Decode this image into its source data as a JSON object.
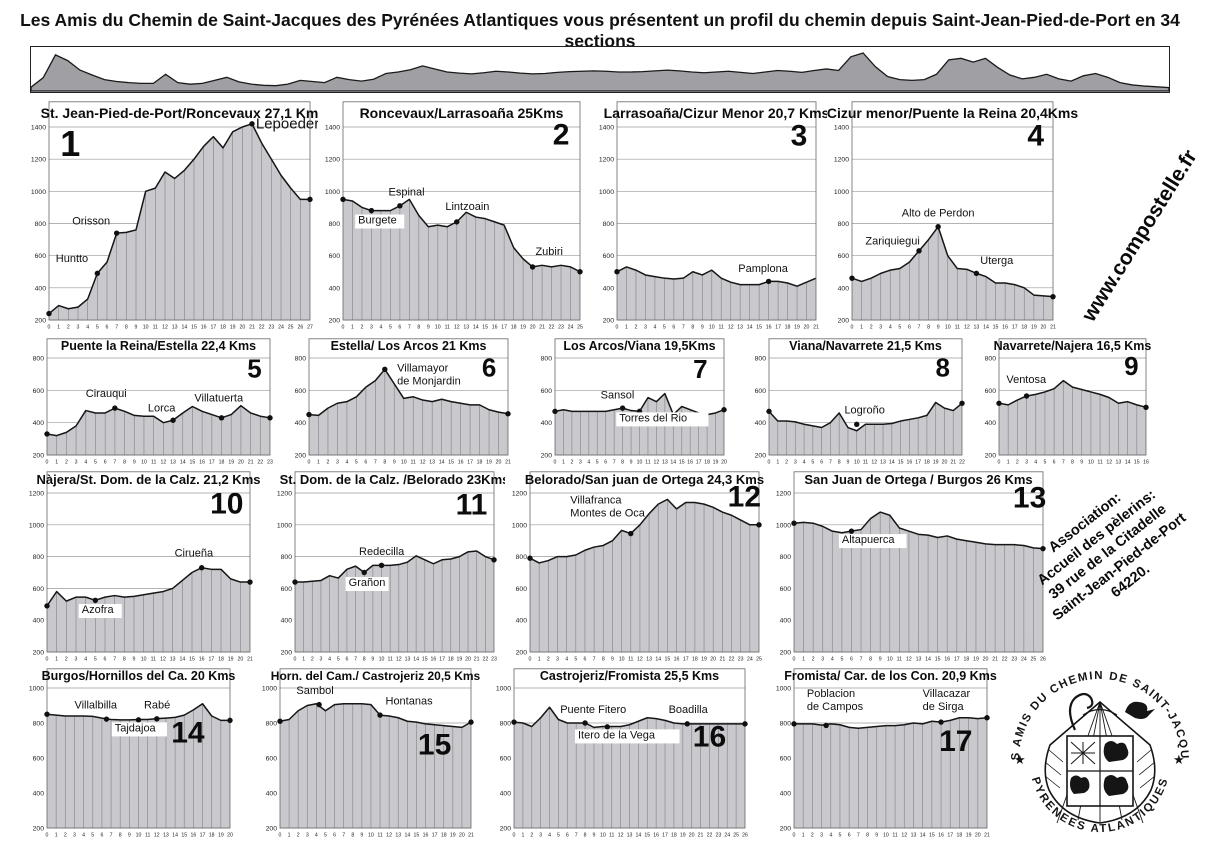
{
  "header": {
    "title": "Les Amis du Chemin de Saint-Jacques des Pyrénées Atlantiques vous présentent un profil du chemin depuis Saint-Jean-Pied-de-Port en 34 sections"
  },
  "watermarks": {
    "url": "www.compostelle.fr",
    "association_lines": [
      "Association:",
      "Accueil des pèlerins:",
      "39 rue de la Citadelle",
      "Saint-Jean-Pied-de-Port",
      "64220."
    ],
    "seal_top": "LES AMIS DU CHEMIN DE SAINT-JACQUES",
    "seal_bottom": "PYRENEES ATLANTIQUES"
  },
  "colors": {
    "fill_gray": "#c9c9cd",
    "overview_gray": "#a0a0a4",
    "line_black": "#161616",
    "grid_gray": "#9a9a9a"
  },
  "chart_data": {
    "type": "area",
    "overview": {
      "title": "",
      "values": [
        10,
        35,
        95,
        80,
        55,
        42,
        30,
        25,
        22,
        20,
        20,
        44,
        22,
        18,
        20,
        28,
        36,
        24,
        18,
        15,
        14,
        18,
        28,
        25,
        22,
        36,
        30,
        26,
        31,
        46,
        50,
        56,
        66,
        58,
        50,
        47,
        45,
        48,
        52,
        50,
        47,
        45,
        46,
        49,
        51,
        52,
        53,
        52,
        50,
        50,
        51,
        53,
        55,
        53,
        50,
        48,
        50,
        52,
        49,
        46,
        50,
        54,
        52,
        49,
        54,
        58,
        54,
        90,
        100,
        64,
        38,
        30,
        28,
        30,
        44,
        82,
        86,
        76,
        86,
        62,
        42,
        32,
        36,
        44,
        32,
        26,
        40,
        46,
        36,
        22,
        16,
        13,
        11,
        9
      ]
    },
    "sections": [
      {
        "num": "1",
        "title": "St. Jean-Pied-de-Port/Roncevaux 27,1 Km",
        "ymin": 200,
        "ymax": 1400,
        "ystep": 200,
        "top_pad": 26,
        "title_size": 14,
        "values": [
          240,
          290,
          270,
          280,
          330,
          490,
          560,
          740,
          745,
          760,
          1000,
          1020,
          1120,
          1080,
          1130,
          1200,
          1280,
          1340,
          1270,
          1370,
          1400,
          1420,
          1300,
          1200,
          1100,
          1020,
          950,
          950
        ],
        "places": [
          {
            "name": "Huntto",
            "km": 5,
            "ele": 490,
            "lkm": 0.7,
            "lele": 560
          },
          {
            "name": "Orisson",
            "km": 7,
            "ele": 740,
            "lkm": 2.4,
            "lele": 795
          },
          {
            "name": "Lepoeder",
            "km": 21,
            "ele": 1420,
            "lkm": 21.4,
            "lele": 1390,
            "size": 15
          }
        ],
        "num_km": 2.2,
        "num_ele": 1220,
        "num_size": 36
      },
      {
        "num": "2",
        "title": "Roncevaux/Larrasoaña 25Kms",
        "ymin": 200,
        "ymax": 1400,
        "ystep": 200,
        "top_pad": 26,
        "title_size": 14,
        "values": [
          950,
          940,
          900,
          880,
          880,
          880,
          910,
          950,
          850,
          780,
          790,
          780,
          810,
          870,
          840,
          830,
          810,
          790,
          650,
          580,
          530,
          540,
          530,
          540,
          530,
          500
        ],
        "places": [
          {
            "name": "Burgete",
            "km": 3,
            "ele": 880,
            "lkm": 1.6,
            "lele": 800,
            "boxed": true
          },
          {
            "name": "Espinal",
            "km": 6,
            "ele": 910,
            "lkm": 4.8,
            "lele": 975
          },
          {
            "name": "Lintzoain",
            "km": 12,
            "ele": 810,
            "lkm": 10.8,
            "lele": 885
          },
          {
            "name": "Zubiri",
            "km": 20,
            "ele": 530,
            "lkm": 20.3,
            "lele": 605
          }
        ],
        "num_km": 23,
        "num_ele": 1290,
        "num_size": 30
      },
      {
        "num": "3",
        "title": "Larrasoaña/Cizur Menor 20,7 Kms",
        "ymin": 200,
        "ymax": 1400,
        "ystep": 200,
        "top_pad": 26,
        "title_size": 14,
        "values": [
          500,
          530,
          510,
          480,
          470,
          460,
          455,
          460,
          500,
          480,
          510,
          460,
          435,
          420,
          420,
          420,
          440,
          440,
          430,
          410,
          435,
          460
        ],
        "places": [
          {
            "name": "Pamplona",
            "km": 16,
            "ele": 440,
            "lkm": 12.8,
            "lele": 500
          }
        ],
        "num_km": 19.2,
        "num_ele": 1285,
        "num_size": 30,
        "end_dot": false
      },
      {
        "num": "4",
        "title": "Cizur menor/Puente la Reina 20,4Kms",
        "ymin": 200,
        "ymax": 1400,
        "ystep": 200,
        "top_pad": 26,
        "title_size": 14,
        "values": [
          460,
          440,
          460,
          490,
          510,
          520,
          560,
          630,
          700,
          780,
          600,
          520,
          515,
          490,
          470,
          430,
          430,
          420,
          400,
          355,
          350,
          345
        ],
        "places": [
          {
            "name": "Zariquiegui",
            "km": 7,
            "ele": 630,
            "lkm": 1.4,
            "lele": 668
          },
          {
            "name": "Alto de Perdon",
            "km": 9,
            "ele": 780,
            "lkm": 5.2,
            "lele": 845
          },
          {
            "name": "Uterga",
            "km": 13,
            "ele": 490,
            "lkm": 13.4,
            "lele": 548
          }
        ],
        "num_km": 19.2,
        "num_ele": 1285,
        "num_size": 30
      },
      {
        "num": "5",
        "title": "Puente la Reina/Estella 22,4 Kms",
        "ymin": 200,
        "ymax": 800,
        "ystep": 200,
        "top_pad": 20,
        "title_size": 12.5,
        "values": [
          330,
          320,
          340,
          380,
          475,
          460,
          460,
          490,
          470,
          445,
          440,
          440,
          400,
          415,
          460,
          500,
          470,
          450,
          430,
          450,
          505,
          460,
          440,
          430
        ],
        "places": [
          {
            "name": "Cirauqui",
            "km": 7,
            "ele": 490,
            "lkm": 4.0,
            "lele": 560
          },
          {
            "name": "Lorca",
            "km": 13,
            "ele": 415,
            "lkm": 10.4,
            "lele": 470
          },
          {
            "name": "Villatuerta",
            "km": 18,
            "ele": 430,
            "lkm": 15.2,
            "lele": 530
          }
        ],
        "num_km": 21.4,
        "num_ele": 680,
        "num_size": 26
      },
      {
        "num": "6",
        "title": "Estella/ Los Arcos 21 Kms",
        "ymin": 200,
        "ymax": 800,
        "ystep": 200,
        "top_pad": 20,
        "title_size": 12.5,
        "values": [
          450,
          445,
          490,
          520,
          530,
          560,
          620,
          660,
          730,
          640,
          550,
          560,
          540,
          530,
          545,
          530,
          520,
          510,
          510,
          480,
          465,
          455
        ],
        "places": [
          {
            "lines": [
              "Villamayor",
              "de Monjardin"
            ],
            "name": "Villamayor de Monjardin",
            "km": 8,
            "ele": 730,
            "lkm": 9.3,
            "lele": 715
          }
        ],
        "num_km": 19,
        "num_ele": 685,
        "num_size": 26
      },
      {
        "num": "7",
        "title": "Los Arcos/Viana 19,5Kms",
        "ymin": 200,
        "ymax": 800,
        "ystep": 200,
        "top_pad": 20,
        "title_size": 12.5,
        "values": [
          470,
          480,
          470,
          470,
          470,
          470,
          470,
          480,
          490,
          475,
          470,
          555,
          530,
          580,
          450,
          500,
          480,
          460,
          450,
          460,
          480
        ],
        "places": [
          {
            "name": "Sansol",
            "km": 8,
            "ele": 490,
            "lkm": 5.4,
            "lele": 550
          },
          {
            "name": "Torres del Rio",
            "km": 10,
            "ele": 470,
            "lkm": 7.6,
            "lele": 408,
            "boxed": true
          }
        ],
        "num_km": 17.2,
        "num_ele": 675,
        "num_size": 26
      },
      {
        "num": "8",
        "title": "Viana/Navarrete 21,5 Kms",
        "ymin": 200,
        "ymax": 800,
        "ystep": 200,
        "top_pad": 20,
        "title_size": 12.5,
        "values": [
          470,
          410,
          410,
          405,
          390,
          380,
          370,
          400,
          460,
          370,
          350,
          390,
          390,
          390,
          395,
          410,
          420,
          430,
          445,
          525,
          490,
          475,
          520
        ],
        "places": [
          {
            "name": "Logroño",
            "km": 10,
            "ele": 390,
            "lkm": 8.6,
            "lele": 458
          }
        ],
        "num_km": 19.8,
        "num_ele": 685,
        "num_size": 26
      },
      {
        "num": "9",
        "title": "Navarrete/Najera 16,5 Kms",
        "ymin": 200,
        "ymax": 800,
        "ystep": 200,
        "top_pad": 20,
        "title_size": 12.5,
        "values": [
          520,
          510,
          540,
          565,
          575,
          590,
          610,
          660,
          620,
          605,
          590,
          575,
          555,
          520,
          530,
          510,
          495
        ],
        "places": [
          {
            "name": "Ventosa",
            "km": 3,
            "ele": 565,
            "lkm": 0.8,
            "lele": 645
          }
        ],
        "num_km": 14.4,
        "num_ele": 695,
        "num_size": 26
      },
      {
        "num": "10",
        "title": "Nàjera/St. Dom. de la Calz. 21,2 Kms",
        "ymin": 200,
        "ymax": 1200,
        "ystep": 200,
        "top_pad": 22,
        "title_size": 13,
        "values": [
          490,
          580,
          520,
          545,
          545,
          525,
          545,
          555,
          545,
          550,
          560,
          570,
          580,
          600,
          650,
          700,
          730,
          720,
          720,
          660,
          640,
          640
        ],
        "places": [
          {
            "name": "Azofra",
            "km": 5,
            "ele": 525,
            "lkm": 3.6,
            "lele": 445,
            "boxed": true
          },
          {
            "name": "Cirueña",
            "km": 16,
            "ele": 730,
            "lkm": 13.2,
            "lele": 800
          }
        ],
        "num_km": 18.6,
        "num_ele": 1070,
        "num_size": 30
      },
      {
        "num": "11",
        "title": "St. Dom. de la Calz. /Belorado 23Kms",
        "ymin": 200,
        "ymax": 1200,
        "ystep": 200,
        "top_pad": 22,
        "title_size": 13,
        "values": [
          640,
          640,
          645,
          650,
          680,
          665,
          720,
          740,
          700,
          745,
          745,
          745,
          750,
          765,
          805,
          780,
          755,
          780,
          785,
          800,
          830,
          835,
          800,
          780
        ],
        "places": [
          {
            "name": "Grañon",
            "km": 8,
            "ele": 700,
            "lkm": 6.2,
            "lele": 615,
            "boxed": true
          },
          {
            "name": "Redecilla",
            "km": 10,
            "ele": 745,
            "lkm": 7.4,
            "lele": 810
          }
        ],
        "num_km": 20.4,
        "num_ele": 1065,
        "num_size": 30
      },
      {
        "num": "12",
        "title": "Belorado/San juan de Ortega 24,3 Kms",
        "ymin": 200,
        "ymax": 1200,
        "ystep": 200,
        "top_pad": 22,
        "title_size": 13,
        "values": [
          790,
          760,
          775,
          800,
          800,
          810,
          840,
          860,
          870,
          900,
          965,
          945,
          1000,
          1070,
          1130,
          1160,
          1100,
          1140,
          1140,
          1130,
          1110,
          1080,
          1060,
          1030,
          1000,
          1000
        ],
        "places": [
          {
            "lines": [
              "Villafranca",
              "Montes de Oca"
            ],
            "name": "Villafranca Montes de Oca",
            "km": 11,
            "ele": 945,
            "lkm": 4.4,
            "lele": 1135
          }
        ],
        "num_km": 23.4,
        "num_ele": 1115,
        "num_size": 30
      },
      {
        "num": "13",
        "title": "San Juan de Ortega / Burgos 26 Kms",
        "ymin": 200,
        "ymax": 1200,
        "ystep": 200,
        "top_pad": 22,
        "title_size": 13,
        "values": [
          1010,
          1015,
          1010,
          990,
          960,
          950,
          960,
          970,
          1040,
          1080,
          1060,
          980,
          960,
          940,
          935,
          920,
          930,
          910,
          900,
          890,
          880,
          875,
          875,
          875,
          870,
          855,
          850
        ],
        "places": [
          {
            "name": "Altapuerca",
            "km": 6,
            "ele": 960,
            "lkm": 5.0,
            "lele": 885,
            "boxed": true
          }
        ],
        "num_km": 24.6,
        "num_ele": 1110,
        "num_size": 30
      },
      {
        "num": "14",
        "title": "Burgos/Hornillos del Ca. 20 Kms",
        "ymin": 200,
        "ymax": 1000,
        "ystep": 200,
        "top_pad": 20,
        "title_size": 12.5,
        "values": [
          850,
          845,
          840,
          840,
          840,
          838,
          828,
          820,
          818,
          818,
          820,
          820,
          825,
          828,
          832,
          845,
          875,
          910,
          840,
          815,
          815
        ],
        "places": [
          {
            "name": "Villalbilla",
            "km": 6.5,
            "ele": 822,
            "lkm": 3.0,
            "lele": 882
          },
          {
            "name": "Tajdajoa",
            "km": 10,
            "ele": 818,
            "lkm": 7.4,
            "lele": 752,
            "boxed": true
          },
          {
            "name": "Rabé",
            "km": 12,
            "ele": 824,
            "lkm": 10.6,
            "lele": 882
          }
        ],
        "num_km": 15.4,
        "num_ele": 690,
        "num_size": 30
      },
      {
        "num": "15",
        "title": "Horn. del Cam./ Castrojeriz 20,5 Kms",
        "ymin": 200,
        "ymax": 1000,
        "ystep": 200,
        "top_pad": 20,
        "title_size": 12,
        "values": [
          810,
          820,
          870,
          900,
          910,
          870,
          905,
          910,
          910,
          910,
          905,
          845,
          840,
          830,
          810,
          805,
          795,
          790,
          785,
          780,
          775,
          805
        ],
        "places": [
          {
            "name": "Sambol",
            "km": 4.3,
            "ele": 905,
            "lkm": 1.8,
            "lele": 965
          },
          {
            "name": "Hontanas",
            "km": 11,
            "ele": 845,
            "lkm": 11.6,
            "lele": 905
          }
        ],
        "num_km": 17,
        "num_ele": 620,
        "num_size": 30
      },
      {
        "num": "16",
        "title": "Castrojeriz/Fromista 25,5 Kms",
        "ymin": 200,
        "ymax": 1000,
        "ystep": 200,
        "top_pad": 20,
        "title_size": 12.5,
        "values": [
          805,
          800,
          780,
          830,
          890,
          820,
          800,
          800,
          800,
          775,
          780,
          780,
          780,
          790,
          810,
          830,
          825,
          815,
          800,
          795,
          795,
          795,
          795,
          795,
          795,
          795,
          795
        ],
        "places": [
          {
            "name": "Puente Fitero",
            "km": 8,
            "ele": 800,
            "lkm": 5.2,
            "lele": 858
          },
          {
            "name": "Itero de la Vega",
            "km": 10.5,
            "ele": 778,
            "lkm": 7.2,
            "lele": 712,
            "boxed": true
          },
          {
            "name": "Boadilla",
            "km": 19.5,
            "ele": 795,
            "lkm": 17.4,
            "lele": 858
          }
        ],
        "num_km": 22,
        "num_ele": 665,
        "num_size": 30
      },
      {
        "num": "17",
        "title": "Fromista/ Car. de los Con. 20,9 Kms",
        "ymin": 200,
        "ymax": 1000,
        "ystep": 200,
        "top_pad": 20,
        "title_size": 12.5,
        "values": [
          795,
          795,
          795,
          788,
          795,
          790,
          775,
          770,
          775,
          780,
          785,
          785,
          790,
          800,
          795,
          810,
          805,
          815,
          830,
          830,
          825,
          830
        ],
        "places": [
          {
            "lines": [
              "Poblacion",
              "de Campos"
            ],
            "name": "Poblacion de Campos",
            "km": 3.5,
            "ele": 786,
            "lkm": 1.4,
            "lele": 950
          },
          {
            "lines": [
              "Villacazar",
              "de Sirga"
            ],
            "name": "Villacazar de Sirga",
            "km": 16,
            "ele": 805,
            "lkm": 14.0,
            "lele": 950
          }
        ],
        "num_km": 17.6,
        "num_ele": 640,
        "num_size": 30
      }
    ]
  }
}
